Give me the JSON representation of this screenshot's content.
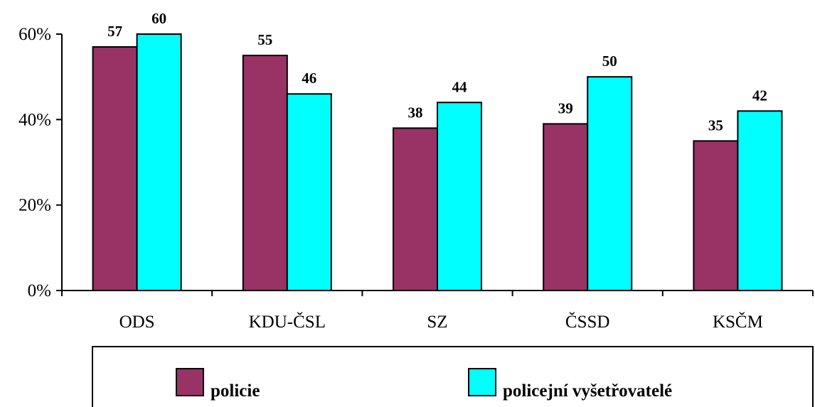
{
  "chart_data": {
    "type": "bar",
    "categories": [
      "ODS",
      "KDU-ČSL",
      "SZ",
      "ČSSD",
      "KSČM"
    ],
    "series": [
      {
        "name": "policie",
        "values": [
          57,
          55,
          38,
          39,
          35
        ],
        "color": "#993366"
      },
      {
        "name": "policejní vyšetřovatelé",
        "values": [
          60,
          46,
          44,
          50,
          42
        ],
        "color": "#00FFFF"
      }
    ],
    "data_labels": [
      [
        "57",
        "55",
        "38",
        "39",
        "35"
      ],
      [
        "60",
        "46",
        "44",
        "50",
        "42"
      ]
    ],
    "y_ticks": [
      {
        "value": 0,
        "label": "0%"
      },
      {
        "value": 20,
        "label": "20%"
      },
      {
        "value": 40,
        "label": "40%"
      },
      {
        "value": 60,
        "label": "60%"
      }
    ],
    "ylim": [
      0,
      60
    ],
    "title": "",
    "xlabel": "",
    "ylabel": "",
    "grid": false,
    "legend_position": "bottom"
  }
}
